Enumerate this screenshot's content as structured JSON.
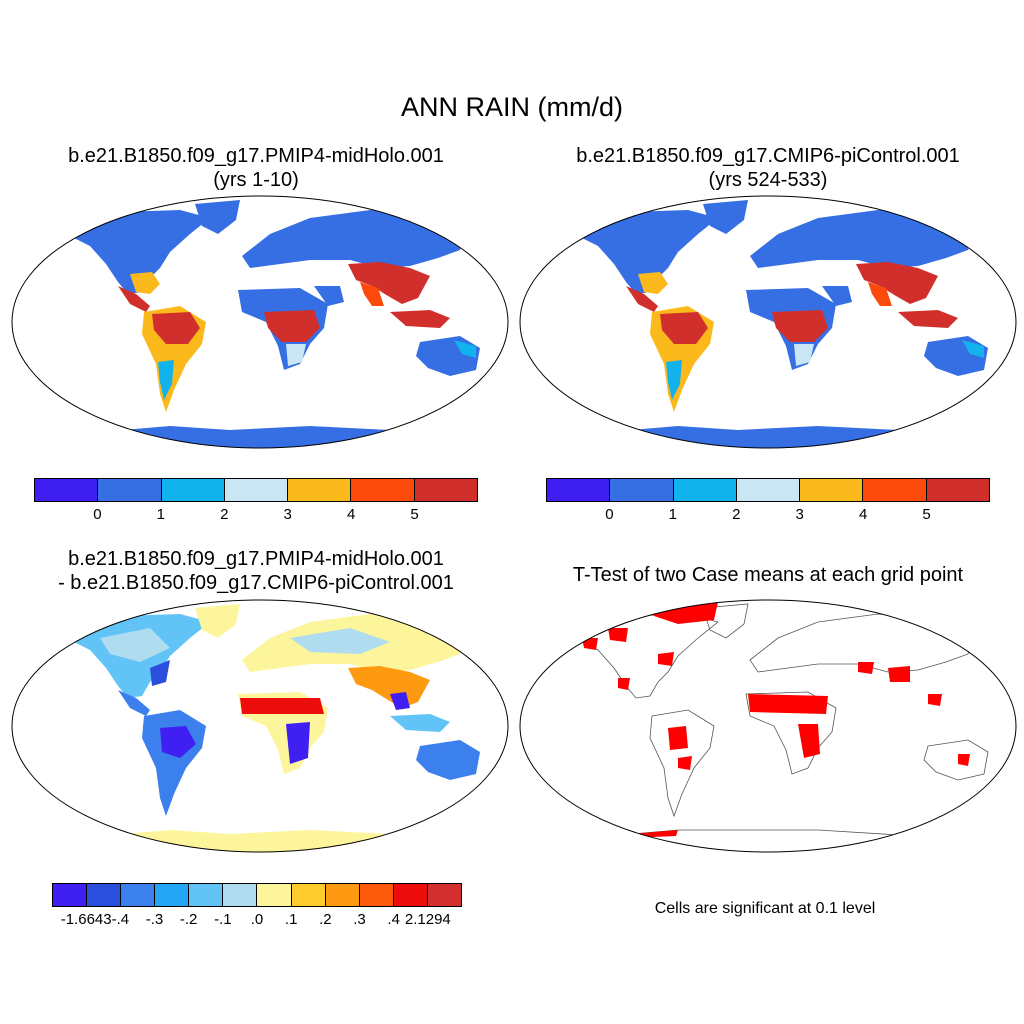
{
  "title": "ANN RAIN (mm/d)",
  "panels": {
    "top_left": {
      "title_line1": "b.e21.B1850.f09_g17.PMIP4-midHolo.001",
      "title_line2": "(yrs 1-10)"
    },
    "top_right": {
      "title_line1": "b.e21.B1850.f09_g17.CMIP6-piControl.001",
      "title_line2": "(yrs 524-533)"
    },
    "bottom_left": {
      "title_line1": "b.e21.B1850.f09_g17.PMIP4-midHolo.001",
      "title_line2": "- b.e21.B1850.f09_g17.CMIP6-piControl.001"
    },
    "bottom_right": {
      "title": "T-Test of two Case means at each grid point",
      "note": "Cells are significant at 0.1 level"
    }
  },
  "colorbar_mean": {
    "colors": [
      "#3f1ff2",
      "#356fe3",
      "#12b2ec",
      "#c9e6f5",
      "#fbb91b",
      "#fc4a0c",
      "#d12f2c"
    ],
    "labels": [
      "0",
      "1",
      "2",
      "3",
      "4",
      "5"
    ]
  },
  "colorbar_diff": {
    "colors": [
      "#3f1ff2",
      "#2b4fdd",
      "#3c80ee",
      "#22a6f5",
      "#62c4f6",
      "#b0dcef",
      "#fdf59b",
      "#ffcc2e",
      "#fe9a12",
      "#fd5a0b",
      "#ee0d0d",
      "#d42f2f"
    ],
    "labels": [
      "-1.6643",
      "-.4",
      "-.3",
      "-.2",
      "-.1",
      ".0",
      ".1",
      ".2",
      ".3",
      ".4",
      "2.1294"
    ]
  },
  "significance_color": "#ff0000",
  "map_projection": "Robinson"
}
